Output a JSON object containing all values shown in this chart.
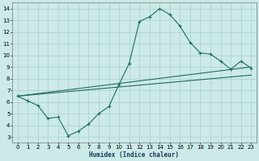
{
  "xlabel": "Humidex (Indice chaleur)",
  "bg_color": "#cceae8",
  "grid_color": "#aacfcc",
  "line_color": "#1e6b60",
  "xlim": [
    -0.5,
    23.5
  ],
  "ylim": [
    2.5,
    14.5
  ],
  "xticks": [
    0,
    1,
    2,
    3,
    4,
    5,
    6,
    7,
    8,
    9,
    10,
    11,
    12,
    13,
    14,
    15,
    16,
    17,
    18,
    19,
    20,
    21,
    22,
    23
  ],
  "yticks": [
    3,
    4,
    5,
    6,
    7,
    8,
    9,
    10,
    11,
    12,
    13,
    14
  ],
  "line1_x": [
    0,
    1,
    2,
    3,
    4,
    5,
    6,
    7,
    8,
    9,
    10,
    11,
    12,
    13,
    14,
    15,
    16,
    17,
    18,
    19,
    20,
    21,
    22,
    23
  ],
  "line1_y": [
    6.5,
    6.1,
    5.7,
    4.6,
    4.7,
    3.1,
    3.5,
    4.1,
    5.0,
    5.6,
    7.5,
    9.3,
    12.9,
    13.3,
    14.0,
    13.5,
    12.5,
    11.1,
    10.2,
    10.1,
    9.5,
    8.8,
    9.5,
    8.9
  ],
  "line2_x": [
    0,
    23
  ],
  "line2_y": [
    6.5,
    9.0
  ],
  "line3_x": [
    0,
    23
  ],
  "line3_y": [
    6.5,
    8.3
  ]
}
